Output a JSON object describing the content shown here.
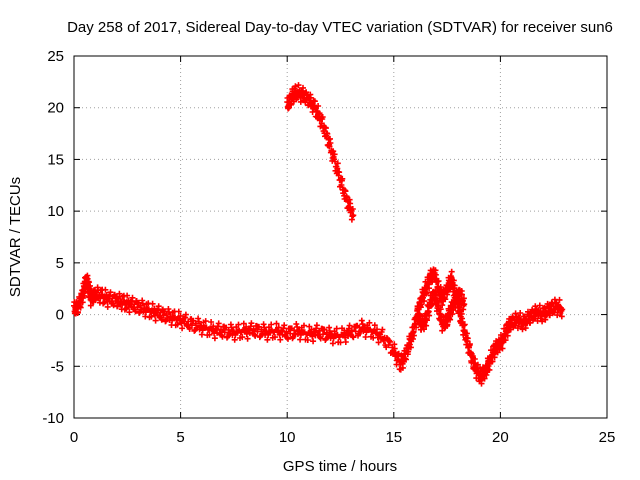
{
  "chart_data": {
    "type": "scatter",
    "title": "Day 258 of 2017, Sidereal Day-to-day VTEC variation (SDTVAR) for receiver sun6",
    "xlabel": "GPS time / hours",
    "ylabel": "SDTVAR / TECUs",
    "xlim": [
      0,
      25
    ],
    "ylim": [
      -10,
      25
    ],
    "xticks": [
      "0",
      "5",
      "10",
      "15",
      "20",
      "25"
    ],
    "yticks": [
      "-10",
      "-5",
      "0",
      "5",
      "10",
      "15",
      "20",
      "25"
    ],
    "xtick_values": [
      0,
      5,
      10,
      15,
      20,
      25
    ],
    "ytick_values": [
      -10,
      -5,
      0,
      5,
      10,
      15,
      20,
      25
    ],
    "grid": true,
    "marker": "+",
    "series": [
      {
        "name": "sun6 SDTVAR",
        "color": "#ff0000",
        "segments": [
          [
            [
              0.0,
              0.5
            ],
            [
              0.2,
              0.8
            ],
            [
              0.4,
              1.8
            ],
            [
              0.5,
              2.8
            ],
            [
              0.6,
              3.3
            ],
            [
              0.7,
              2.5
            ],
            [
              0.8,
              1.5
            ],
            [
              1.0,
              2.0
            ],
            [
              1.3,
              1.8
            ],
            [
              1.6,
              1.5
            ],
            [
              2.0,
              1.4
            ],
            [
              2.3,
              1.2
            ],
            [
              2.6,
              1.0
            ],
            [
              3.0,
              0.8
            ],
            [
              3.4,
              0.5
            ],
            [
              3.8,
              0.2
            ],
            [
              4.2,
              0.0
            ],
            [
              4.6,
              -0.3
            ],
            [
              5.0,
              -0.5
            ],
            [
              5.5,
              -0.9
            ],
            [
              6.0,
              -1.2
            ],
            [
              6.5,
              -1.5
            ],
            [
              7.0,
              -1.6
            ],
            [
              7.5,
              -1.7
            ],
            [
              8.0,
              -1.6
            ],
            [
              8.5,
              -1.5
            ],
            [
              9.0,
              -1.7
            ],
            [
              9.5,
              -1.6
            ],
            [
              10.0,
              -1.8
            ],
            [
              10.5,
              -1.6
            ],
            [
              11.0,
              -1.9
            ],
            [
              11.5,
              -1.7
            ],
            [
              12.0,
              -2.0
            ],
            [
              12.5,
              -2.1
            ],
            [
              13.0,
              -1.7
            ],
            [
              13.5,
              -1.3
            ],
            [
              14.0,
              -1.6
            ],
            [
              14.5,
              -2.2
            ],
            [
              15.0,
              -3.5
            ],
            [
              15.3,
              -4.8
            ],
            [
              15.5,
              -4.2
            ],
            [
              15.7,
              -3.0
            ],
            [
              15.9,
              -1.8
            ],
            [
              16.1,
              0.0
            ],
            [
              16.3,
              1.5
            ],
            [
              16.5,
              2.5
            ],
            [
              16.7,
              3.5
            ],
            [
              16.9,
              4.0
            ],
            [
              17.1,
              2.5
            ],
            [
              17.3,
              1.5
            ],
            [
              17.5,
              2.5
            ],
            [
              17.7,
              3.5
            ],
            [
              17.9,
              2.0
            ],
            [
              18.1,
              0.0
            ],
            [
              18.3,
              -1.5
            ],
            [
              18.5,
              -3.0
            ],
            [
              18.7,
              -4.5
            ],
            [
              18.9,
              -5.5
            ],
            [
              19.1,
              -6.0
            ],
            [
              19.3,
              -5.5
            ],
            [
              19.5,
              -4.5
            ],
            [
              19.7,
              -3.5
            ],
            [
              19.9,
              -3.0
            ],
            [
              20.1,
              -2.5
            ],
            [
              20.3,
              -1.5
            ],
            [
              20.5,
              -0.8
            ],
            [
              20.8,
              -0.5
            ],
            [
              21.1,
              -0.8
            ],
            [
              21.4,
              -0.2
            ],
            [
              21.7,
              0.2
            ],
            [
              22.0,
              0.0
            ],
            [
              22.3,
              0.5
            ],
            [
              22.6,
              0.8
            ],
            [
              22.9,
              0.5
            ]
          ],
          [
            [
              16.1,
              0.0
            ],
            [
              16.3,
              -1.0
            ],
            [
              16.5,
              -0.5
            ],
            [
              16.7,
              1.0
            ],
            [
              16.9,
              2.0
            ],
            [
              17.1,
              0.5
            ],
            [
              17.3,
              -1.0
            ],
            [
              17.5,
              -0.5
            ],
            [
              17.7,
              0.5
            ],
            [
              17.9,
              1.5
            ],
            [
              18.1,
              2.0
            ],
            [
              18.3,
              1.0
            ]
          ],
          [
            [
              10.0,
              20.2
            ],
            [
              10.2,
              21.0
            ],
            [
              10.4,
              21.5
            ],
            [
              10.7,
              21.3
            ],
            [
              11.0,
              20.8
            ],
            [
              11.3,
              20.0
            ],
            [
              11.6,
              18.8
            ],
            [
              11.9,
              17.0
            ],
            [
              12.2,
              15.0
            ],
            [
              12.5,
              13.0
            ],
            [
              12.8,
              11.0
            ],
            [
              13.1,
              9.6
            ]
          ]
        ]
      }
    ]
  }
}
